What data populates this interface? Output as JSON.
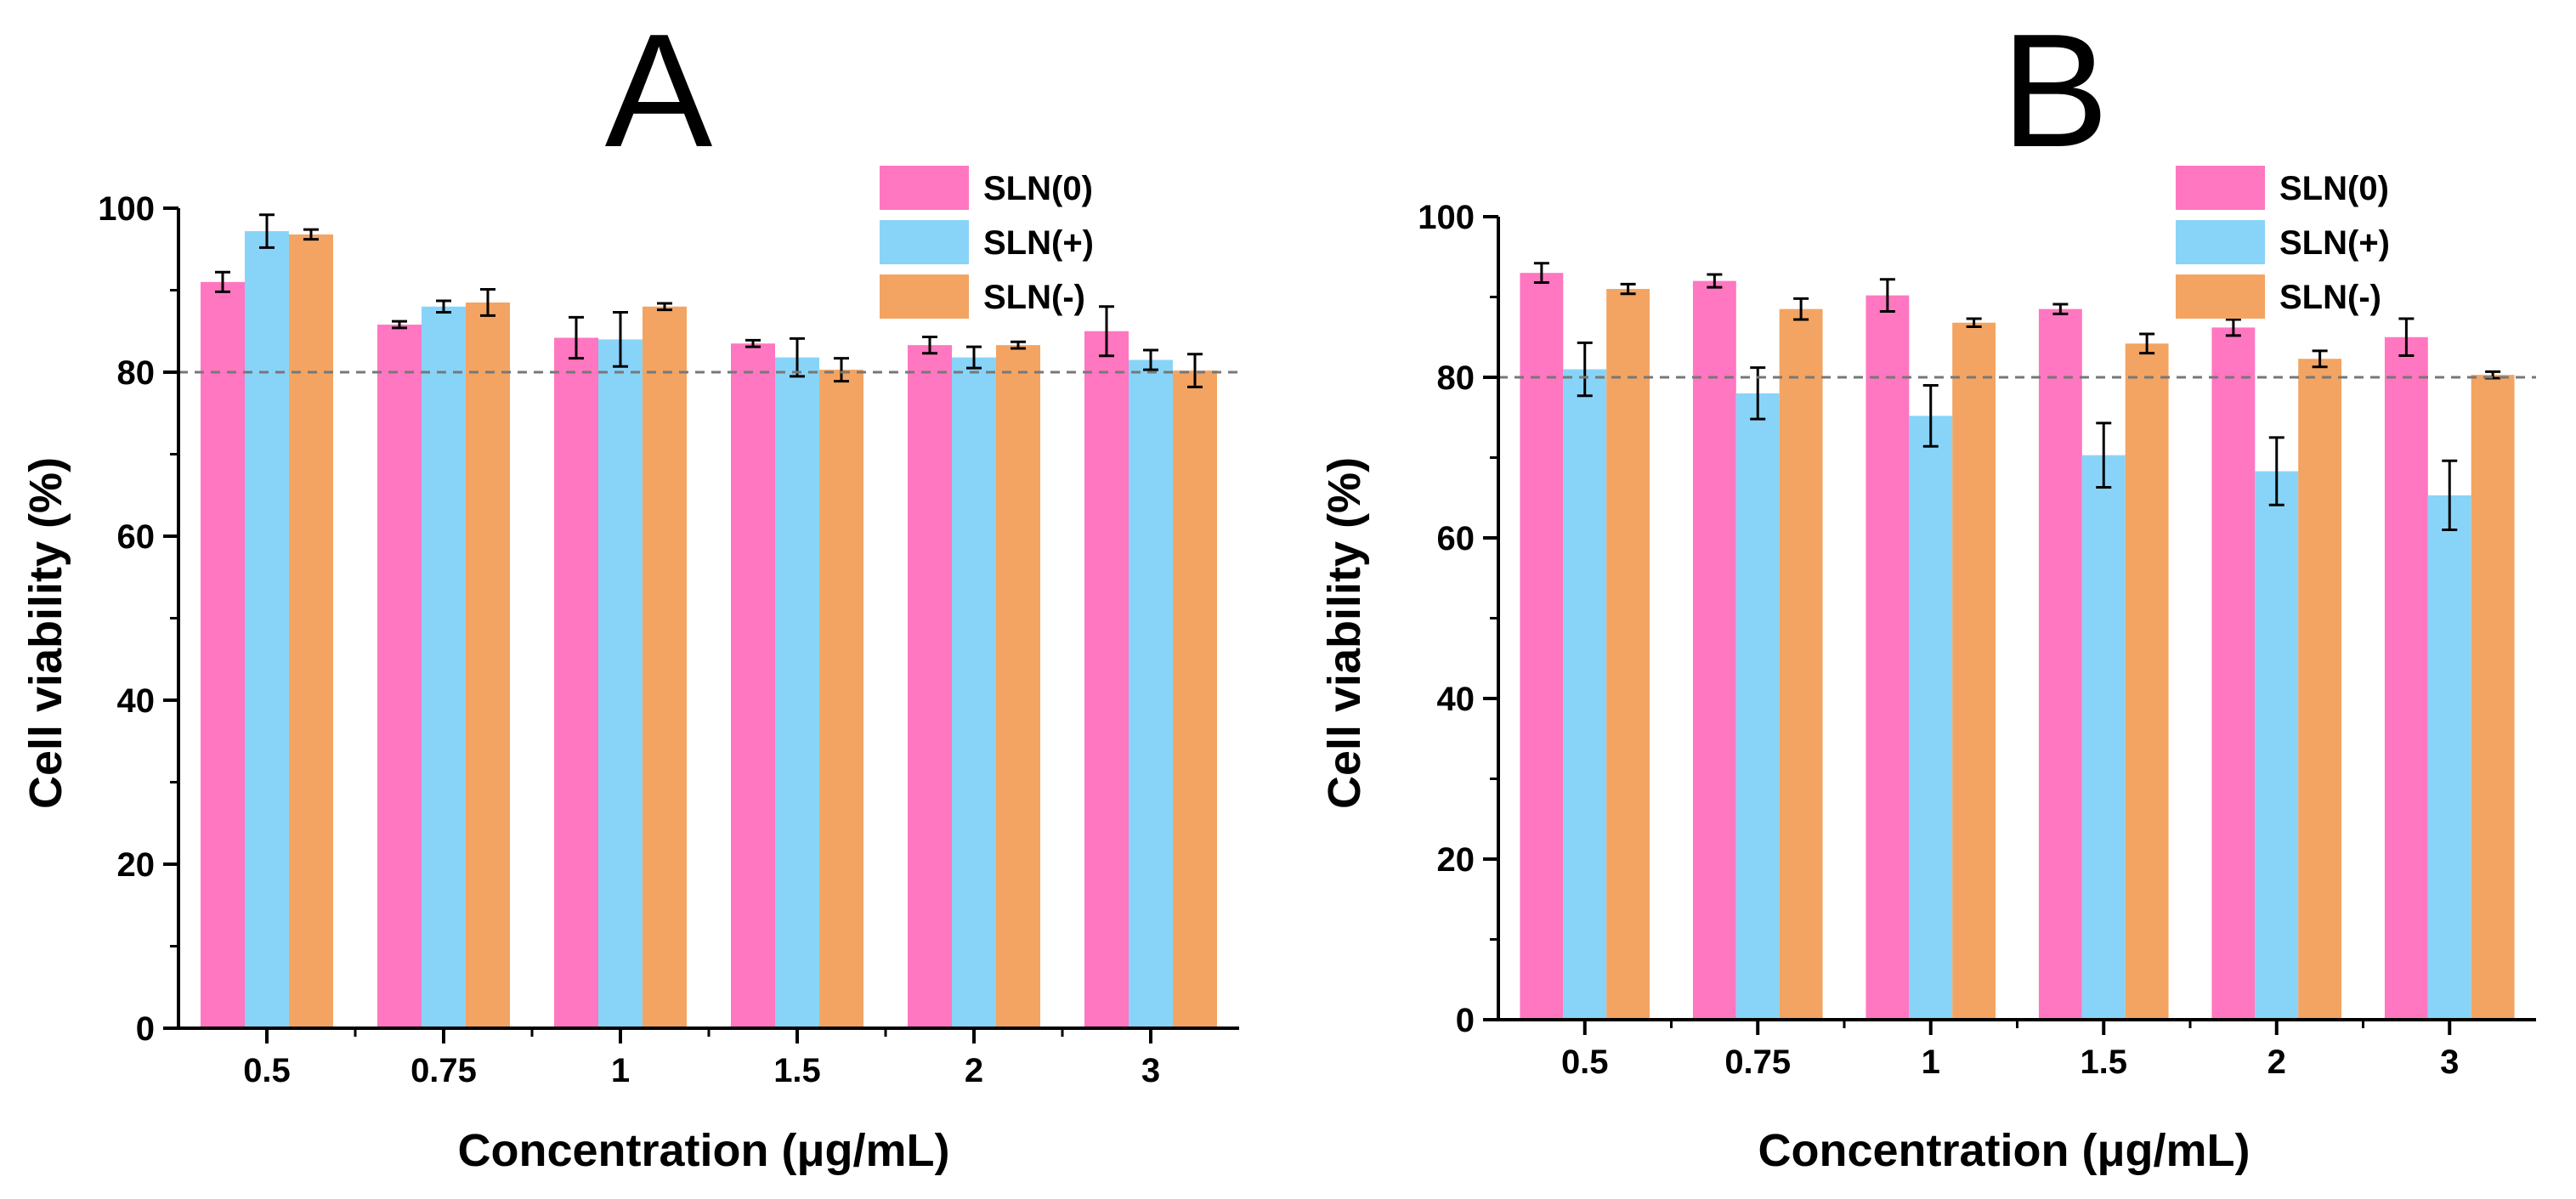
{
  "figure": {
    "colors": {
      "SLN(0)": "#ff77c0",
      "SLN(+)": "#88d4f8",
      "SLN(-)": "#f3a462"
    },
    "reference_line_value": 80
  },
  "chart_data": [
    {
      "type": "bar",
      "title": "A",
      "xlabel": "Concentration (μg/mL)",
      "ylabel": "Cell viability (%)",
      "ylim": [
        0,
        100
      ],
      "yticks": [
        0,
        20,
        40,
        60,
        80,
        100
      ],
      "categories": [
        "0.5",
        "0.75",
        "1",
        "1.5",
        "2",
        "3"
      ],
      "series": [
        {
          "name": "SLN(0)",
          "values": [
            91,
            85.8,
            84.2,
            83.5,
            83.3,
            85
          ],
          "errors": [
            1.2,
            0.4,
            2.5,
            0.4,
            1.0,
            3.0
          ]
        },
        {
          "name": "SLN(+)",
          "values": [
            97.2,
            88,
            84,
            81.8,
            81.8,
            81.5
          ],
          "errors": [
            2.0,
            0.7,
            3.3,
            2.3,
            1.3,
            1.2
          ]
        },
        {
          "name": "SLN(-)",
          "values": [
            96.8,
            88.5,
            88,
            80.3,
            83.3,
            80.2
          ],
          "errors": [
            0.6,
            1.6,
            0.4,
            1.4,
            0.4,
            2.0
          ]
        }
      ],
      "reference_line": 80,
      "legend": "top-right"
    },
    {
      "type": "bar",
      "title": "B",
      "xlabel": "Concentration (μg/mL)",
      "ylabel": "Cell viability (%)",
      "ylim": [
        0,
        100
      ],
      "yticks": [
        0,
        20,
        40,
        60,
        80,
        100
      ],
      "categories": [
        "0.5",
        "0.75",
        "1",
        "1.5",
        "2",
        "3"
      ],
      "series": [
        {
          "name": "SLN(0)",
          "values": [
            93,
            92,
            90.2,
            88.5,
            86.2,
            85
          ],
          "errors": [
            1.2,
            0.8,
            2.0,
            0.6,
            1.0,
            2.3
          ]
        },
        {
          "name": "SLN(+)",
          "values": [
            81,
            78,
            75.2,
            70.3,
            68.3,
            65.3
          ],
          "errors": [
            3.3,
            3.2,
            3.8,
            4.0,
            4.2,
            4.3
          ]
        },
        {
          "name": "SLN(-)",
          "values": [
            91,
            88.5,
            86.8,
            84.2,
            82.3,
            80.3
          ],
          "errors": [
            0.6,
            1.3,
            0.5,
            1.2,
            1.0,
            0.4
          ]
        }
      ],
      "reference_line": 80,
      "legend": "top-right"
    }
  ]
}
